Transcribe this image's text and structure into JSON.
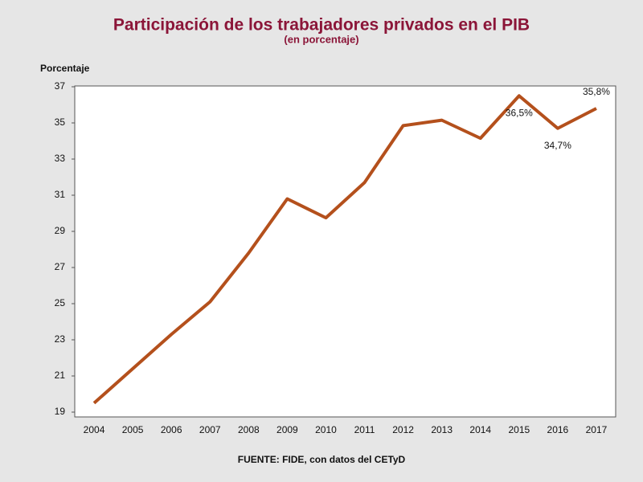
{
  "chart_data": {
    "type": "line",
    "title": "Participación de los trabajadores privados en el PIB",
    "subtitle": "(en porcentaje)",
    "y_label": "Porcentaje",
    "source": "FUENTE: FIDE, con datos del CETyD",
    "categories": [
      "2004",
      "2005",
      "2006",
      "2007",
      "2008",
      "2009",
      "2010",
      "2011",
      "2012",
      "2013",
      "2014",
      "2015",
      "2016",
      "2017"
    ],
    "values": [
      19.5,
      21.4,
      23.3,
      25.1,
      27.8,
      30.8,
      29.75,
      31.7,
      34.85,
      35.15,
      34.15,
      36.5,
      34.7,
      35.8
    ],
    "value_labels": [
      null,
      null,
      null,
      null,
      null,
      null,
      null,
      null,
      null,
      null,
      null,
      "36,5%",
      "34,7%",
      "35,8%"
    ],
    "color": "#b4501c",
    "ylim": [
      19,
      37
    ],
    "yticks": [
      19,
      21,
      23,
      25,
      27,
      29,
      31,
      33,
      35,
      37
    ],
    "grid": false
  }
}
